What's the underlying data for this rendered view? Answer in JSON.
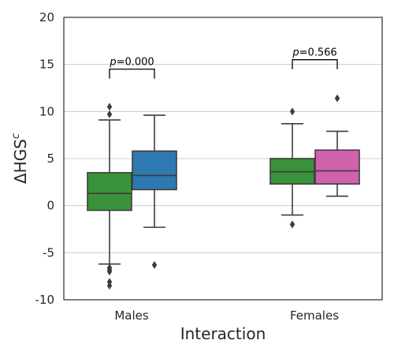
{
  "chart_data": {
    "type": "box",
    "xlabel": "Interaction",
    "ylabel_main": "ΔHGS",
    "ylabel_sup": "c",
    "ylim": [
      -10,
      20
    ],
    "yticks": [
      20,
      15,
      10,
      5,
      0,
      -5,
      -10
    ],
    "tick_labels": [
      "20",
      "15",
      "10",
      "5",
      "0",
      "-5",
      "-10"
    ],
    "grid": true,
    "categories": [
      "Males",
      "Females"
    ],
    "series_colors": [
      "#3a923a",
      "#2e7ab0",
      "#d062ad"
    ],
    "boxes": [
      {
        "category": "Males",
        "color": "#3a923a",
        "whisker_low": -6.2,
        "q1": -0.5,
        "median": 1.3,
        "q3": 3.5,
        "whisker_high": 9.1,
        "outliers": [
          10.5,
          9.7,
          -6.6,
          -6.8,
          -7.0,
          -8.1,
          -8.5
        ]
      },
      {
        "category": "Males",
        "color": "#2e7ab0",
        "whisker_low": -2.3,
        "q1": 1.7,
        "median": 3.2,
        "q3": 5.8,
        "whisker_high": 9.6,
        "outliers": [
          -6.3
        ]
      },
      {
        "category": "Females",
        "color": "#3a923a",
        "whisker_low": -1.0,
        "q1": 2.3,
        "median": 3.6,
        "q3": 5.0,
        "whisker_high": 8.7,
        "outliers": [
          10.0,
          -2.0
        ]
      },
      {
        "category": "Females",
        "color": "#d062ad",
        "whisker_low": 1.0,
        "q1": 2.3,
        "median": 3.7,
        "q3": 5.9,
        "whisker_high": 7.9,
        "outliers": [
          11.4
        ]
      }
    ],
    "annotations": [
      {
        "category": "Males",
        "p_letter": "p",
        "p_value": "=0.000",
        "bracket_y": 14.5
      },
      {
        "category": "Females",
        "p_letter": "p",
        "p_value": "=0.566",
        "bracket_y": 15.5
      }
    ]
  }
}
